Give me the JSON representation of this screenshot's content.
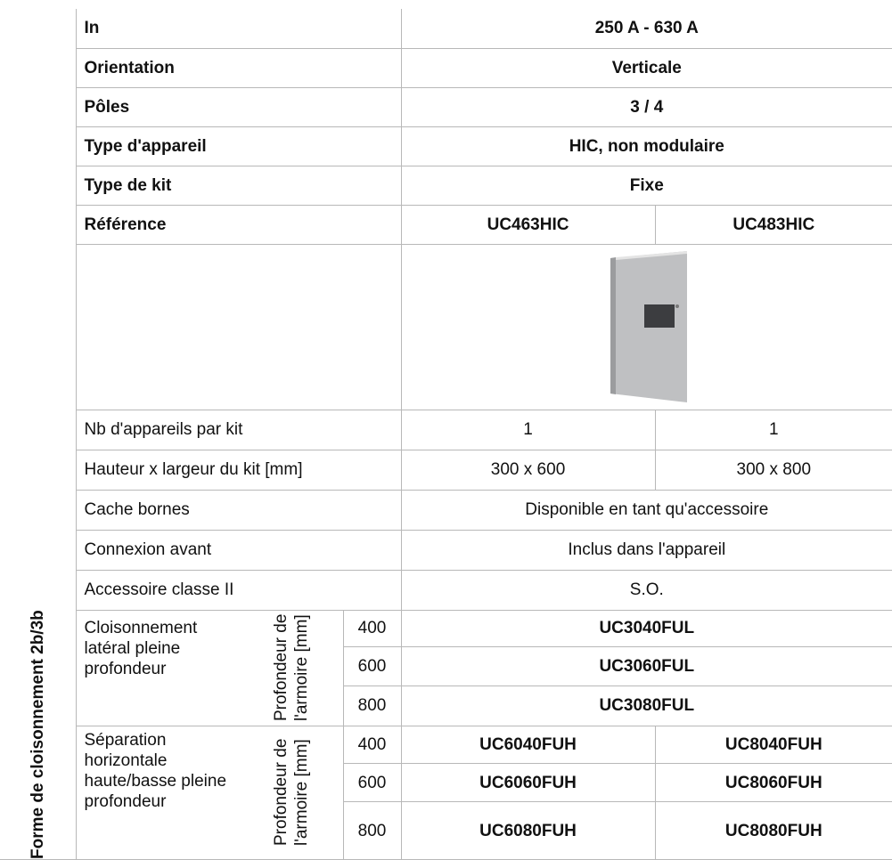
{
  "table": {
    "rows": [
      {
        "label": "In",
        "value": "250 A - 630 A"
      },
      {
        "label": "Orientation",
        "value": "Verticale"
      },
      {
        "label": "Pôles",
        "value": "3 / 4"
      },
      {
        "label": "Type d'appareil",
        "value": "HIC, non modulaire"
      },
      {
        "label": "Type de kit",
        "value": "Fixe"
      }
    ],
    "reference": {
      "label": "Référence",
      "values": [
        "UC463HIC",
        "UC483HIC"
      ]
    },
    "specs": [
      {
        "label": "Nb d'appareils par kit",
        "values": [
          1,
          1
        ]
      },
      {
        "label": "Hauteur x largeur du kit [mm]",
        "values": [
          "300 x 600",
          "300 x 800"
        ]
      },
      {
        "label": "Cache bornes",
        "value": "Disponible en tant qu'accessoire"
      },
      {
        "label": "Connexion avant",
        "value": "Inclus dans l'appareil"
      },
      {
        "label": "Accessoire classe II",
        "value": "S.O."
      }
    ],
    "partition": {
      "title": "Forme de cloisonnement 2b/3b",
      "groups": [
        {
          "label": "Cloisonnement latéral pleine profondeur",
          "depth_label": "Profondeur de l'armoire [mm]",
          "rows": [
            {
              "depth": 400,
              "value": "UC3040FUL"
            },
            {
              "depth": 600,
              "value": "UC3060FUL"
            },
            {
              "depth": 800,
              "value": "UC3080FUL"
            }
          ]
        },
        {
          "label": "Séparation horizontale haute/basse pleine profondeur",
          "depth_label": "Profondeur de l'armoire [mm]",
          "rows": [
            {
              "depth": 400,
              "values": [
                "UC6040FUH",
                "UC8040FUH"
              ]
            },
            {
              "depth": 600,
              "values": [
                "UC6060FUH",
                "UC8060FUH"
              ]
            },
            {
              "depth": 800,
              "values": [
                "UC6080FUH",
                "UC8080FUH"
              ]
            }
          ]
        }
      ]
    }
  }
}
